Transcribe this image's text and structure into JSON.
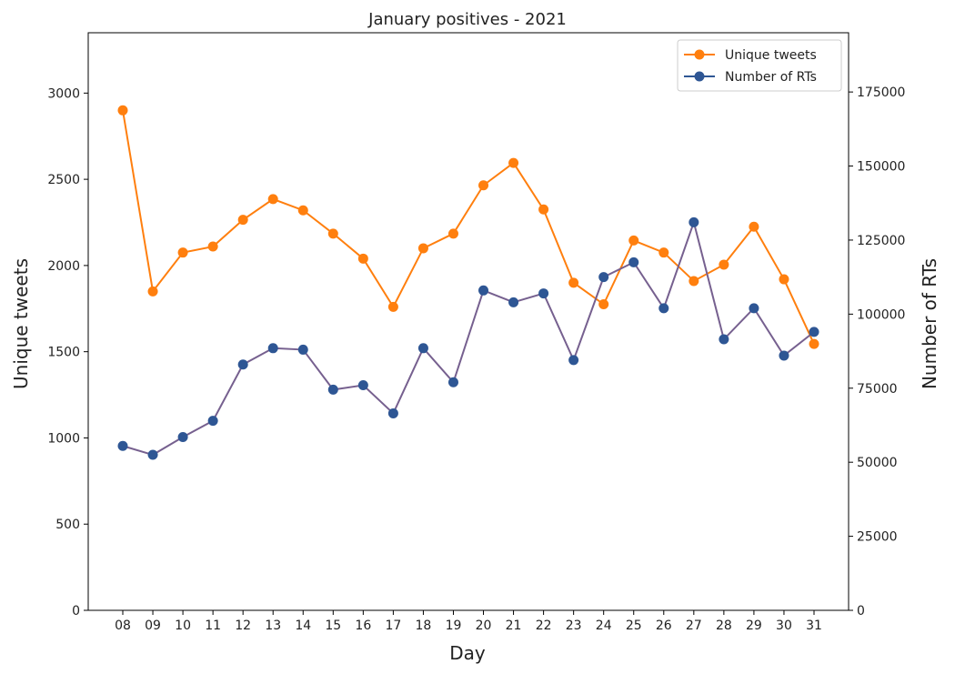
{
  "chart_data": {
    "type": "line",
    "title": "January positives - 2021",
    "xlabel": "Day",
    "ylabel": "Unique tweets",
    "y2label": "Number of RTs",
    "categories": [
      "08",
      "09",
      "10",
      "11",
      "12",
      "13",
      "14",
      "15",
      "16",
      "17",
      "18",
      "19",
      "20",
      "21",
      "22",
      "23",
      "24",
      "25",
      "26",
      "27",
      "28",
      "29",
      "30",
      "31"
    ],
    "ylim": [
      0,
      3350
    ],
    "y2lim": [
      0,
      195000
    ],
    "yticks": [
      0,
      500,
      1000,
      1500,
      2000,
      2500,
      3000
    ],
    "y2ticks": [
      0,
      25000,
      50000,
      75000,
      100000,
      125000,
      150000,
      175000
    ],
    "grid": false,
    "legend": "top-right",
    "series": [
      {
        "name": "Unique tweets",
        "axis": "left",
        "color": "#ff7f0e",
        "values": [
          2900,
          1850,
          2075,
          2110,
          2265,
          2385,
          2320,
          2185,
          2040,
          1760,
          2100,
          2185,
          2465,
          2595,
          2325,
          1900,
          1775,
          2145,
          2075,
          1910,
          2005,
          2225,
          1920,
          1545
        ]
      },
      {
        "name": "Number of RTs",
        "axis": "right",
        "color": "#2e5694",
        "line_color": "#76608f",
        "values": [
          55500,
          52500,
          58500,
          64000,
          83000,
          88500,
          88000,
          74500,
          76000,
          66500,
          88500,
          77000,
          108000,
          104000,
          107000,
          84500,
          112500,
          117500,
          102000,
          131000,
          91500,
          102000,
          86000,
          94000
        ]
      }
    ]
  }
}
